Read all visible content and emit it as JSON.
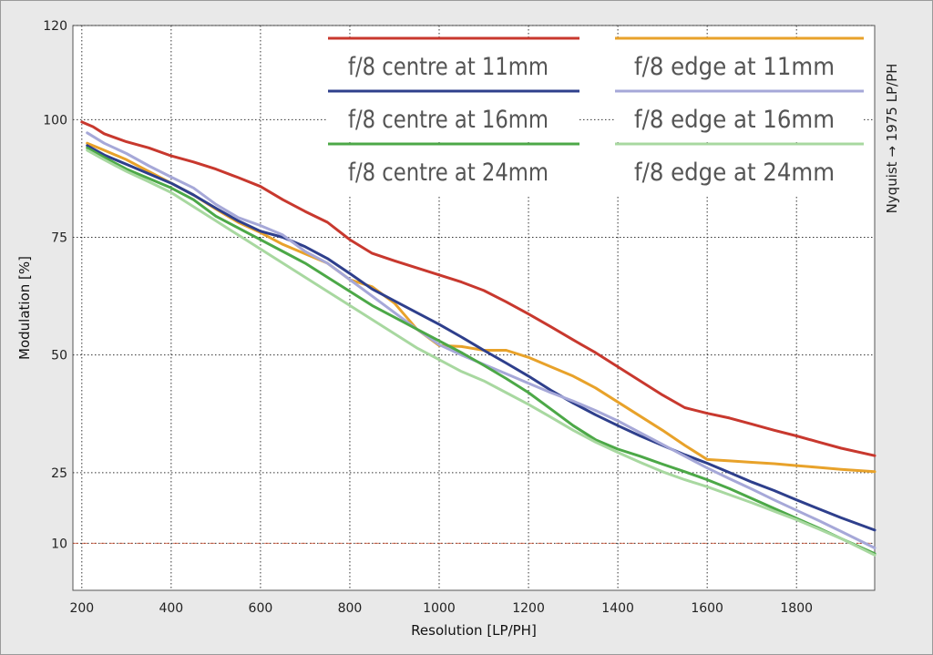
{
  "chart_data": {
    "type": "line",
    "xlabel": "Resolution [LP/PH]",
    "ylabel": "Modulation [%]",
    "xlim": [
      180,
      1975
    ],
    "ylim": [
      0,
      120
    ],
    "x_ticks": [
      200,
      400,
      600,
      800,
      1000,
      1200,
      1400,
      1600,
      1800
    ],
    "x_tick_labels": [
      "200",
      "400",
      "600",
      "800",
      "1000",
      "1200",
      "1400",
      "1600",
      "1800"
    ],
    "y_ticks": [
      10,
      25,
      50,
      75,
      100,
      120
    ],
    "y_tick_labels": [
      "10",
      "25",
      "50",
      "75",
      "100",
      "120"
    ],
    "grid": true,
    "legend_position": "top",
    "right_annotation": "Nyquist → 1975 LP/PH",
    "reference_line": {
      "y": 10,
      "color": "#cc4422"
    },
    "series": [
      {
        "name": "f/8 centre at 11mm",
        "color": "#c8382e",
        "x": [
          200,
          225,
          250,
          300,
          350,
          400,
          450,
          500,
          550,
          600,
          650,
          700,
          750,
          800,
          850,
          900,
          950,
          1000,
          1050,
          1100,
          1150,
          1200,
          1250,
          1300,
          1350,
          1400,
          1450,
          1500,
          1550,
          1600,
          1650,
          1700,
          1750,
          1800,
          1850,
          1900,
          1975
        ],
        "y": [
          99.5,
          98.5,
          97.0,
          95.3,
          94.0,
          92.3,
          91.0,
          89.5,
          87.7,
          85.8,
          83.0,
          80.5,
          78.2,
          74.5,
          71.6,
          70.0,
          68.5,
          67.0,
          65.5,
          63.7,
          61.3,
          58.7,
          56.0,
          53.2,
          50.5,
          47.5,
          44.5,
          41.5,
          38.8,
          37.6,
          36.6,
          35.3,
          34.0,
          32.8,
          31.5,
          30.2,
          28.6
        ]
      },
      {
        "name": "f/8 edge at 11mm",
        "color": "#e8a22a",
        "x": [
          212,
          250,
          300,
          350,
          400,
          450,
          500,
          550,
          600,
          650,
          700,
          750,
          800,
          850,
          900,
          950,
          1000,
          1050,
          1100,
          1150,
          1200,
          1250,
          1300,
          1350,
          1400,
          1450,
          1500,
          1550,
          1600,
          1650,
          1700,
          1750,
          1800,
          1850,
          1900,
          1975
        ],
        "y": [
          95.0,
          93.5,
          91.5,
          89.0,
          86.5,
          84.0,
          81.0,
          78.2,
          76.0,
          73.5,
          71.5,
          69.5,
          66.0,
          64.5,
          61.0,
          55.5,
          52.0,
          51.8,
          51.0,
          51.0,
          49.5,
          47.5,
          45.5,
          43.0,
          40.0,
          37.0,
          34.0,
          30.8,
          27.8,
          27.5,
          27.2,
          26.9,
          26.5,
          26.1,
          25.7,
          25.2
        ]
      },
      {
        "name": "f/8 centre at 16mm",
        "color": "#2e3f8c",
        "x": [
          212,
          250,
          300,
          350,
          400,
          450,
          500,
          550,
          600,
          650,
          700,
          750,
          800,
          850,
          900,
          950,
          1000,
          1050,
          1100,
          1150,
          1200,
          1250,
          1300,
          1350,
          1400,
          1450,
          1500,
          1550,
          1600,
          1650,
          1700,
          1750,
          1800,
          1850,
          1900,
          1975
        ],
        "y": [
          94.5,
          92.5,
          90.5,
          88.5,
          86.5,
          84.0,
          81.2,
          78.5,
          76.3,
          75.0,
          73.0,
          70.5,
          67.3,
          64.0,
          61.5,
          59.0,
          56.5,
          53.8,
          51.0,
          48.3,
          45.5,
          42.5,
          39.8,
          37.3,
          35.0,
          32.8,
          30.8,
          28.8,
          27.0,
          25.0,
          23.0,
          21.2,
          19.2,
          17.3,
          15.4,
          12.8
        ]
      },
      {
        "name": "f/8 edge at 16mm",
        "color": "#a6a8d8",
        "x": [
          212,
          250,
          300,
          350,
          400,
          450,
          500,
          550,
          600,
          650,
          700,
          750,
          800,
          850,
          900,
          950,
          1000,
          1050,
          1100,
          1150,
          1200,
          1250,
          1300,
          1350,
          1400,
          1450,
          1500,
          1550,
          1600,
          1650,
          1700,
          1750,
          1800,
          1850,
          1900,
          1975
        ],
        "y": [
          97.2,
          95.0,
          92.8,
          90.2,
          87.8,
          85.5,
          82.0,
          79.2,
          77.5,
          75.5,
          72.0,
          69.5,
          66.0,
          62.5,
          59.0,
          55.5,
          52.2,
          50.0,
          48.0,
          46.0,
          44.0,
          42.0,
          40.2,
          38.2,
          36.0,
          33.5,
          31.0,
          28.5,
          26.0,
          23.7,
          21.5,
          19.2,
          17.0,
          14.8,
          12.5,
          9.0
        ]
      },
      {
        "name": "f/8 centre at 24mm",
        "color": "#4ca847",
        "x": [
          212,
          250,
          300,
          350,
          400,
          450,
          500,
          550,
          600,
          650,
          700,
          750,
          800,
          850,
          900,
          950,
          1000,
          1050,
          1100,
          1150,
          1200,
          1250,
          1300,
          1350,
          1400,
          1450,
          1500,
          1550,
          1600,
          1650,
          1700,
          1750,
          1800,
          1850,
          1900,
          1975
        ],
        "y": [
          94.0,
          92.0,
          89.5,
          87.5,
          85.5,
          83.0,
          79.5,
          77.0,
          74.5,
          72.0,
          69.5,
          66.5,
          63.5,
          60.5,
          58.0,
          55.5,
          53.0,
          50.5,
          47.8,
          45.0,
          42.0,
          38.5,
          35.0,
          32.0,
          30.0,
          28.5,
          26.8,
          25.2,
          23.5,
          21.6,
          19.5,
          17.4,
          15.3,
          13.2,
          11.0,
          7.8
        ]
      },
      {
        "name": "f/8 edge at 24mm",
        "color": "#a8d8a0",
        "x": [
          212,
          250,
          300,
          350,
          400,
          450,
          500,
          550,
          600,
          650,
          700,
          750,
          800,
          850,
          900,
          950,
          1000,
          1050,
          1100,
          1150,
          1200,
          1250,
          1300,
          1350,
          1400,
          1450,
          1500,
          1550,
          1600,
          1650,
          1700,
          1750,
          1800,
          1850,
          1900,
          1975
        ],
        "y": [
          93.5,
          91.5,
          89.0,
          86.8,
          84.5,
          81.5,
          78.5,
          75.5,
          72.5,
          69.5,
          66.5,
          63.5,
          60.5,
          57.5,
          54.5,
          51.5,
          49.0,
          46.5,
          44.5,
          42.0,
          39.5,
          36.8,
          34.0,
          31.5,
          29.3,
          27.2,
          25.2,
          23.5,
          22.0,
          20.3,
          18.6,
          16.8,
          15.0,
          13.0,
          11.0,
          7.5
        ]
      }
    ]
  }
}
